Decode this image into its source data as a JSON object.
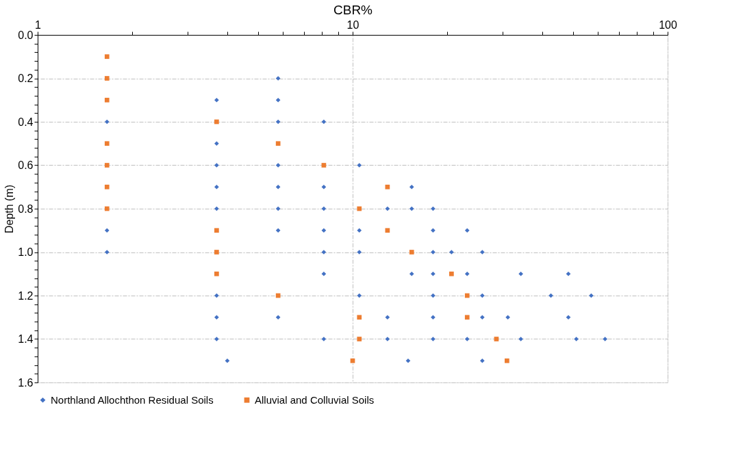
{
  "chart_data": {
    "type": "scatter",
    "xlabel": "CBR%",
    "ylabel": "Depth (m)",
    "log": "x",
    "grid": true,
    "legend": "bottom",
    "xlim": [
      1,
      100
    ],
    "xticks": [
      1,
      {
        "value": 2,
        "label": null
      },
      {
        "value": 3,
        "label": null
      },
      {
        "value": 4,
        "label": null
      },
      {
        "value": 5,
        "label": null
      },
      {
        "value": 6,
        "label": null
      },
      {
        "value": 7,
        "label": null
      },
      {
        "value": 8,
        "label": null
      },
      {
        "value": 9,
        "label": null
      },
      10,
      {
        "value": 20,
        "label": null
      },
      {
        "value": 30,
        "label": null
      },
      {
        "value": 40,
        "label": null
      },
      {
        "value": 50,
        "label": null
      },
      {
        "value": 60,
        "label": null
      },
      {
        "value": 70,
        "label": null
      },
      {
        "value": 80,
        "label": null
      },
      {
        "value": 90,
        "label": null
      },
      100
    ],
    "ylim": [
      1.6,
      0
    ],
    "yticks": [
      {
        "value": 0,
        "label": "0.0"
      },
      {
        "value": 0.04,
        "label": null
      },
      {
        "value": 0.08,
        "label": null
      },
      {
        "value": 0.12,
        "label": null
      },
      {
        "value": 0.16,
        "label": null
      },
      0.2,
      {
        "value": 0.24,
        "label": null
      },
      {
        "value": 0.28,
        "label": null
      },
      {
        "value": 0.32,
        "label": null
      },
      {
        "value": 0.36,
        "label": null
      },
      0.4,
      {
        "value": 0.44,
        "label": null
      },
      {
        "value": 0.48,
        "label": null
      },
      {
        "value": 0.52,
        "label": null
      },
      {
        "value": 0.56,
        "label": null
      },
      0.6,
      {
        "value": 0.64,
        "label": null
      },
      {
        "value": 0.68,
        "label": null
      },
      {
        "value": 0.72,
        "label": null
      },
      {
        "value": 0.76,
        "label": null
      },
      0.8,
      {
        "value": 0.84,
        "label": null
      },
      {
        "value": 0.88,
        "label": null
      },
      {
        "value": 0.92,
        "label": null
      },
      {
        "value": 0.96,
        "label": null
      },
      {
        "value": 1,
        "label": "1.0"
      },
      {
        "value": 1.04,
        "label": null
      },
      {
        "value": 1.08,
        "label": null
      },
      {
        "value": 1.12,
        "label": null
      },
      {
        "value": 1.16,
        "label": null
      },
      1.2,
      {
        "value": 1.24,
        "label": null
      },
      {
        "value": 1.28,
        "label": null
      },
      {
        "value": 1.32,
        "label": null
      },
      {
        "value": 1.36,
        "label": null
      },
      1.4,
      {
        "value": 1.44,
        "label": null
      },
      {
        "value": 1.48,
        "label": null
      },
      {
        "value": 1.52,
        "label": null
      },
      {
        "value": 1.56,
        "label": null
      },
      1.6
    ],
    "series": [
      {
        "name": "Northland Allochthon Residual Soils",
        "color": "#4472c4",
        "marker": "diamond",
        "x": [
          5.8,
          3.7,
          5.8,
          1.66,
          5.8,
          8.1,
          3.7,
          3.7,
          5.8,
          10.5,
          3.7,
          5.8,
          8.1,
          15.4,
          3.7,
          5.8,
          8.1,
          12.9,
          15.4,
          18.0,
          1.66,
          5.8,
          8.1,
          10.5,
          18.0,
          23.1,
          1.66,
          8.1,
          10.5,
          18.0,
          20.6,
          25.8,
          8.1,
          15.4,
          18.0,
          23.1,
          34.2,
          48.4,
          3.7,
          10.5,
          18.0,
          25.8,
          42.6,
          57.2,
          3.7,
          5.8,
          12.9,
          18.0,
          25.8,
          31.1,
          48.4,
          3.7,
          8.1,
          12.9,
          18.0,
          23.1,
          34.2,
          51.3,
          63.3,
          4.0,
          15.0,
          25.8
        ],
        "values": [
          0.2,
          0.3,
          0.3,
          0.4,
          0.4,
          0.4,
          0.5,
          0.6,
          0.6,
          0.6,
          0.7,
          0.7,
          0.7,
          0.7,
          0.8,
          0.8,
          0.8,
          0.8,
          0.8,
          0.8,
          0.9,
          0.9,
          0.9,
          0.9,
          0.9,
          0.9,
          1.0,
          1.0,
          1.0,
          1.0,
          1.0,
          1.0,
          1.1,
          1.1,
          1.1,
          1.1,
          1.1,
          1.1,
          1.2,
          1.2,
          1.2,
          1.2,
          1.2,
          1.2,
          1.3,
          1.3,
          1.3,
          1.3,
          1.3,
          1.3,
          1.3,
          1.4,
          1.4,
          1.4,
          1.4,
          1.4,
          1.4,
          1.4,
          1.4,
          1.5,
          1.5,
          1.5
        ]
      },
      {
        "name": "Alluvial and Colluvial Soils",
        "color": "#ed7d31",
        "marker": "square",
        "x": [
          1.66,
          1.66,
          1.66,
          3.7,
          1.66,
          5.8,
          1.66,
          8.1,
          1.66,
          12.9,
          1.66,
          10.5,
          3.7,
          12.9,
          3.7,
          15.4,
          3.7,
          20.6,
          5.8,
          23.1,
          10.5,
          23.1,
          10.5,
          28.6,
          10.0,
          30.9
        ],
        "values": [
          0.1,
          0.2,
          0.3,
          0.4,
          0.5,
          0.5,
          0.6,
          0.6,
          0.7,
          0.7,
          0.8,
          0.8,
          0.9,
          0.9,
          1.0,
          1.0,
          1.1,
          1.1,
          1.2,
          1.2,
          1.3,
          1.3,
          1.4,
          1.4,
          1.5,
          1.5
        ]
      }
    ]
  }
}
